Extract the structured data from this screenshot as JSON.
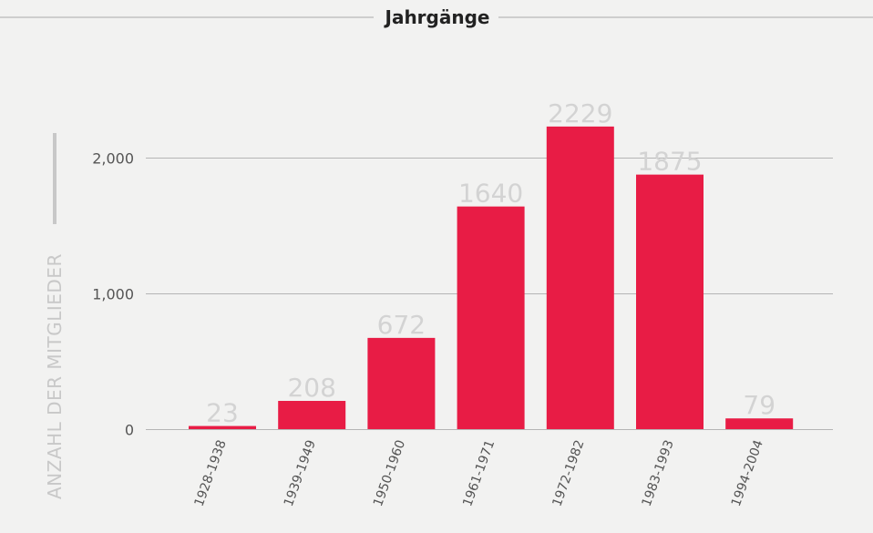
{
  "chart_data": {
    "type": "bar",
    "title": "Jahrgänge",
    "ylabel": "ANZAHL DER MITGLIEDER",
    "xlabel": "",
    "categories": [
      "1928-1938",
      "1939-1949",
      "1950-1960",
      "1961-1971",
      "1972-1982",
      "1983-1993",
      "1994-2004"
    ],
    "values": [
      23,
      208,
      672,
      1640,
      2229,
      1875,
      79
    ],
    "data_labels": [
      "23",
      "208",
      "672",
      "1640",
      "2229",
      "1875",
      "79"
    ],
    "ylim": [
      0,
      2500
    ],
    "yticks": [
      0,
      1000,
      2000
    ],
    "ytick_labels": [
      "0",
      "1,000",
      "2,000"
    ],
    "grid": true,
    "colors": {
      "bar": "#e81c45",
      "grid": "#b5b5b5",
      "data_label": "#d3d3d3",
      "background": "#f2f2f1"
    }
  }
}
